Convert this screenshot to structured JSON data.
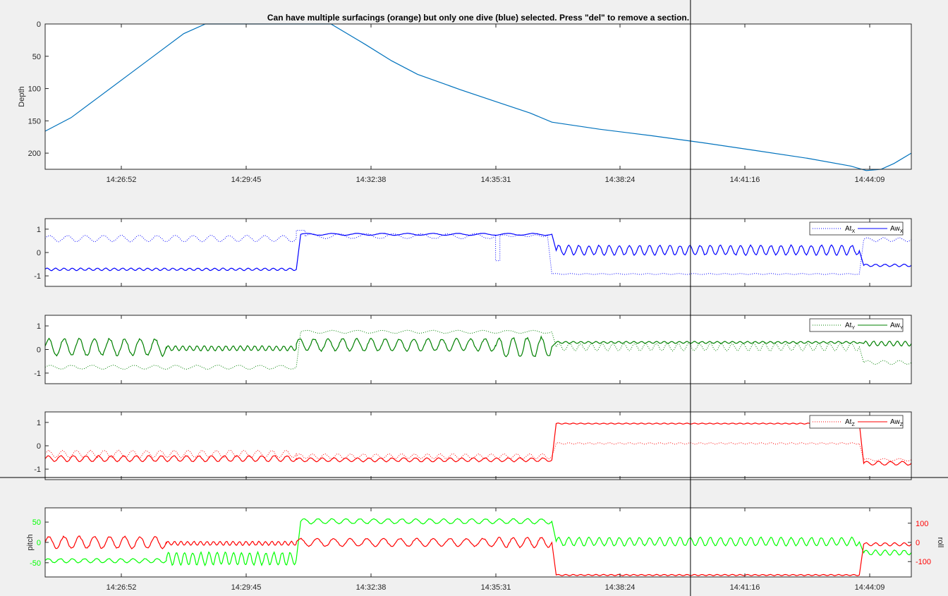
{
  "title": "Can have multiple surfacings (orange) but only one dive (blue) selected.  Press \"del\" to remove a section.",
  "x_tick_labels": [
    "14:26:52",
    "14:29:45",
    "14:32:38",
    "14:35:31",
    "14:38:24",
    "14:41:16",
    "14:44:09"
  ],
  "colors": {
    "depth": "#0072bd",
    "x_axis": "#0000ff",
    "y_axis": "#008000",
    "z_axis": "#ff0000",
    "pitch": "#00ff00",
    "roll": "#ff0000",
    "figure_bg": "#f0f0f0",
    "axes_bg": "#ffffff"
  },
  "chart_data": [
    {
      "id": "depth",
      "type": "line",
      "title": "Can have multiple surfacings (orange) but only one dive (blue) selected.  Press \"del\" to remove a section.",
      "xlabel": "",
      "ylabel": "Depth",
      "y_reversed": true,
      "ylim": [
        0,
        225
      ],
      "yticks": [
        0,
        50,
        100,
        150,
        200
      ],
      "xlim": [
        0,
        1
      ],
      "xticks": [
        "14:26:52",
        "14:29:45",
        "14:32:38",
        "14:35:31",
        "14:38:24",
        "14:41:16",
        "14:44:09"
      ],
      "series": [
        {
          "style": "solid",
          "colorKey": "depth",
          "points": [
            [
              0,
              166
            ],
            [
              0.03,
              145
            ],
            [
              0.06,
              115
            ],
            [
              0.1,
              75
            ],
            [
              0.13,
              45
            ],
            [
              0.16,
              15
            ],
            [
              0.185,
              0
            ],
            [
              0.3,
              0
            ],
            [
              0.33,
              0
            ],
            [
              0.37,
              32
            ],
            [
              0.4,
              57
            ],
            [
              0.43,
              78
            ],
            [
              0.48,
              102
            ],
            [
              0.52,
              120
            ],
            [
              0.56,
              138
            ],
            [
              0.585,
              152
            ],
            [
              0.64,
              163
            ],
            [
              0.7,
              173
            ],
            [
              0.76,
              184
            ],
            [
              0.82,
              196
            ],
            [
              0.88,
              208
            ],
            [
              0.93,
              220
            ],
            [
              0.948,
              227
            ],
            [
              0.965,
              225
            ],
            [
              0.98,
              216
            ],
            [
              1,
              200
            ]
          ]
        }
      ],
      "legend": null
    },
    {
      "id": "x-axis",
      "type": "line",
      "xlabel": "",
      "ylabel": "",
      "ylim": [
        -1.45,
        1.45
      ],
      "yticks": [
        -1,
        0,
        1
      ],
      "xlim": [
        0,
        1
      ],
      "legend": {
        "position": "top-right",
        "entries": [
          {
            "label": "At",
            "sub": "X",
            "style": "dotted"
          },
          {
            "label": "Aw",
            "sub": "X",
            "style": "solid"
          }
        ]
      },
      "series": [
        {
          "name": "At",
          "style": "dotted",
          "colorKey": "x_axis",
          "segments": [
            {
              "x0": 0,
              "x1": 0.29,
              "base": 0.6,
              "amp": 0.13,
              "cycles": 14
            },
            {
              "x0": 0.29,
              "x1": 0.3,
              "base": 0.95,
              "amp": 0.03,
              "cycles": 0
            },
            {
              "x0": 0.3,
              "x1": 0.52,
              "base": 0.7,
              "amp": 0.1,
              "cycles": 7
            },
            {
              "x0": 0.52,
              "x1": 0.525,
              "base": -0.35,
              "amp": 0,
              "cycles": 0
            },
            {
              "x0": 0.525,
              "x1": 0.58,
              "base": 0.72,
              "amp": 0.04,
              "cycles": 3
            },
            {
              "x0": 0.585,
              "x1": 0.94,
              "base": -0.92,
              "amp": 0.02,
              "cycles": 20
            },
            {
              "x0": 0.945,
              "x1": 1,
              "base": 0.55,
              "amp": 0.08,
              "cycles": 3
            }
          ]
        },
        {
          "name": "Aw",
          "style": "solid",
          "colorKey": "x_axis",
          "segments": [
            {
              "x0": 0,
              "x1": 0.29,
              "base": -0.72,
              "amp": 0.05,
              "cycles": 30
            },
            {
              "x0": 0.295,
              "x1": 0.585,
              "base": 0.78,
              "amp": 0.04,
              "cycles": 10
            },
            {
              "x0": 0.59,
              "x1": 0.94,
              "base": 0.1,
              "amp": 0.2,
              "cycles": 30
            },
            {
              "x0": 0.945,
              "x1": 1,
              "base": -0.55,
              "amp": 0.05,
              "cycles": 5
            }
          ]
        }
      ]
    },
    {
      "id": "y-axis",
      "type": "line",
      "xlabel": "",
      "ylabel": "",
      "ylim": [
        -1.45,
        1.45
      ],
      "yticks": [
        -1,
        0,
        1
      ],
      "xlim": [
        0,
        1
      ],
      "legend": {
        "position": "top-right",
        "entries": [
          {
            "label": "At",
            "sub": "Y",
            "style": "dotted"
          },
          {
            "label": "Aw",
            "sub": "Y",
            "style": "solid"
          }
        ]
      },
      "series": [
        {
          "name": "At",
          "style": "dotted",
          "colorKey": "y_axis",
          "segments": [
            {
              "x0": 0,
              "x1": 0.29,
              "base": -0.75,
              "amp": 0.08,
              "cycles": 12
            },
            {
              "x0": 0.295,
              "x1": 0.585,
              "base": 0.75,
              "amp": 0.06,
              "cycles": 10
            },
            {
              "x0": 0.59,
              "x1": 0.94,
              "base": 0.1,
              "amp": 0.15,
              "cycles": 28
            },
            {
              "x0": 0.945,
              "x1": 1,
              "base": -0.55,
              "amp": 0.08,
              "cycles": 3
            }
          ]
        },
        {
          "name": "Aw",
          "style": "solid",
          "colorKey": "y_axis",
          "segments": [
            {
              "x0": 0,
              "x1": 0.14,
              "base": 0.1,
              "amp": 0.35,
              "cycles": 8
            },
            {
              "x0": 0.14,
              "x1": 0.29,
              "base": 0.05,
              "amp": 0.1,
              "cycles": 18
            },
            {
              "x0": 0.29,
              "x1": 0.52,
              "base": 0.2,
              "amp": 0.25,
              "cycles": 14
            },
            {
              "x0": 0.52,
              "x1": 0.585,
              "base": 0.1,
              "amp": 0.4,
              "cycles": 4
            },
            {
              "x0": 0.59,
              "x1": 0.94,
              "base": 0.3,
              "amp": 0.04,
              "cycles": 40
            },
            {
              "x0": 0.945,
              "x1": 1,
              "base": 0.25,
              "amp": 0.1,
              "cycles": 6
            }
          ]
        }
      ]
    },
    {
      "id": "z-axis",
      "type": "line",
      "xlabel": "",
      "ylabel": "",
      "ylim": [
        -1.45,
        1.45
      ],
      "yticks": [
        -1,
        0,
        1
      ],
      "xlim": [
        0,
        1
      ],
      "legend": {
        "position": "top-right",
        "entries": [
          {
            "label": "At",
            "sub": "Z",
            "style": "dotted"
          },
          {
            "label": "Aw",
            "sub": "Z",
            "style": "solid"
          }
        ]
      },
      "series": [
        {
          "name": "At",
          "style": "dotted",
          "colorKey": "z_axis",
          "segments": [
            {
              "x0": 0,
              "x1": 0.29,
              "base": -0.35,
              "amp": 0.15,
              "cycles": 18
            },
            {
              "x0": 0.29,
              "x1": 0.585,
              "base": -0.45,
              "amp": 0.1,
              "cycles": 20
            },
            {
              "x0": 0.59,
              "x1": 0.94,
              "base": 0.1,
              "amp": 0.03,
              "cycles": 30
            },
            {
              "x0": 0.945,
              "x1": 1,
              "base": -0.6,
              "amp": 0.05,
              "cycles": 3
            }
          ]
        },
        {
          "name": "Aw",
          "style": "solid",
          "colorKey": "z_axis",
          "segments": [
            {
              "x0": 0,
              "x1": 0.29,
              "base": -0.55,
              "amp": 0.12,
              "cycles": 20
            },
            {
              "x0": 0.29,
              "x1": 0.585,
              "base": -0.6,
              "amp": 0.08,
              "cycles": 22
            },
            {
              "x0": 0.59,
              "x1": 0.94,
              "base": 0.95,
              "amp": 0.02,
              "cycles": 40
            },
            {
              "x0": 0.945,
              "x1": 1,
              "base": -0.75,
              "amp": 0.08,
              "cycles": 4
            }
          ]
        }
      ]
    },
    {
      "id": "pitch-roll",
      "type": "line",
      "xlabel": "",
      "ylabel": "pitch",
      "ylabel_right": "roll",
      "ylim": [
        -85,
        85
      ],
      "yticks": [
        -50,
        0,
        50
      ],
      "ylim_right": [
        -180,
        180
      ],
      "yticks_right": [
        -100,
        0,
        100
      ],
      "xlim": [
        0,
        1
      ],
      "xticks": [
        "14:26:52",
        "14:29:45",
        "14:32:38",
        "14:35:31",
        "14:38:24",
        "14:41:16",
        "14:44:09"
      ],
      "legend": null,
      "series": [
        {
          "name": "pitch",
          "style": "solid",
          "colorKey": "pitch",
          "axis": "left",
          "segments": [
            {
              "x0": 0,
              "x1": 0.14,
              "base": -45,
              "amp": 5,
              "cycles": 10
            },
            {
              "x0": 0.14,
              "x1": 0.29,
              "base": -40,
              "amp": 15,
              "cycles": 16
            },
            {
              "x0": 0.295,
              "x1": 0.585,
              "base": 52,
              "amp": 6,
              "cycles": 18
            },
            {
              "x0": 0.59,
              "x1": 0.94,
              "base": 2,
              "amp": 10,
              "cycles": 30
            },
            {
              "x0": 0.945,
              "x1": 1,
              "base": -25,
              "amp": 6,
              "cycles": 5
            }
          ]
        },
        {
          "name": "roll",
          "style": "solid",
          "colorKey": "roll",
          "axis": "right",
          "segments": [
            {
              "x0": 0,
              "x1": 0.14,
              "base": 0,
              "amp": 30,
              "cycles": 8
            },
            {
              "x0": 0.14,
              "x1": 0.29,
              "base": -5,
              "amp": 10,
              "cycles": 20
            },
            {
              "x0": 0.29,
              "x1": 0.52,
              "base": 0,
              "amp": 20,
              "cycles": 12
            },
            {
              "x0": 0.52,
              "x1": 0.585,
              "base": 0,
              "amp": 25,
              "cycles": 4
            },
            {
              "x0": 0.59,
              "x1": 0.94,
              "base": -170,
              "amp": 3,
              "cycles": 40
            },
            {
              "x0": 0.945,
              "x1": 1,
              "base": -10,
              "amp": 8,
              "cycles": 5
            }
          ]
        }
      ]
    }
  ],
  "cursor": {
    "x_fraction": 0.745
  }
}
